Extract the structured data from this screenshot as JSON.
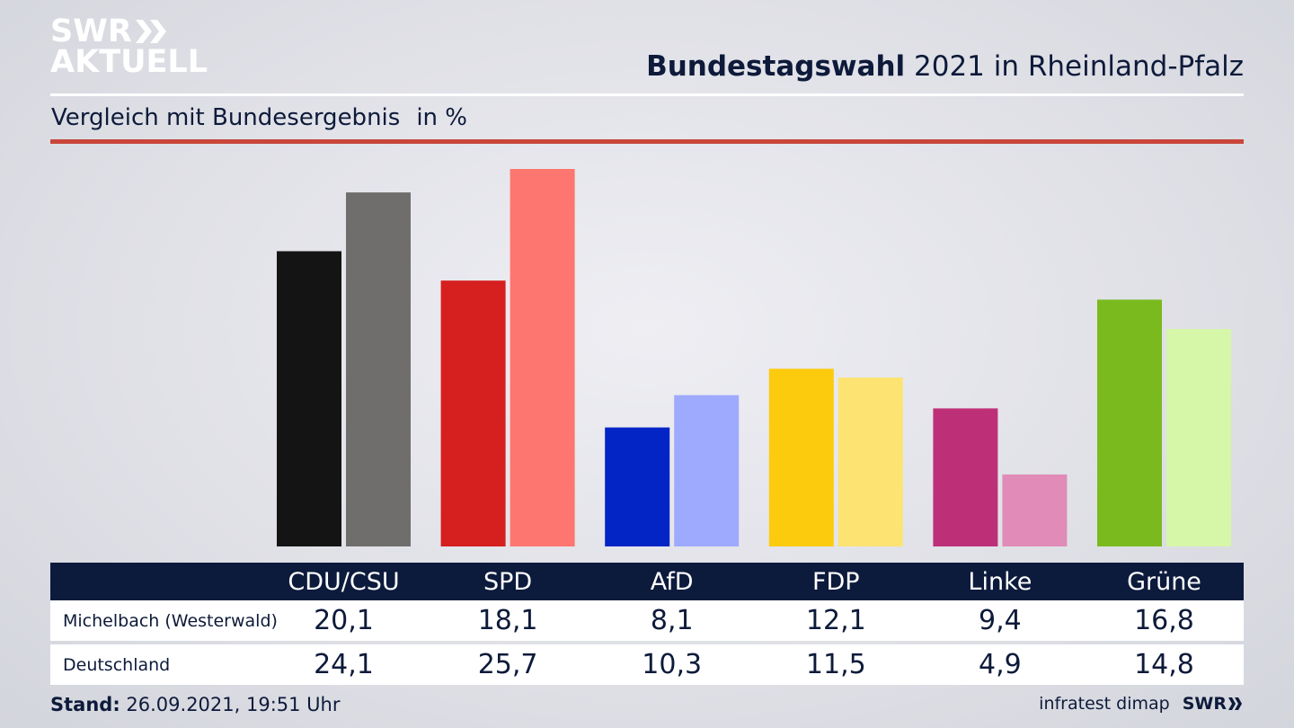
{
  "header": {
    "logo_line1": "SWR",
    "logo_line2": "AKTUELL",
    "title_bold": "Bundestagswahl",
    "title_rest": " 2021 in Rheinland-Pfalz",
    "subtitle": "Vergleich mit Bundesergebnis",
    "unit": "in %"
  },
  "colors": {
    "header_bg": "#0c1a3c",
    "rule_red": "#c9463b",
    "text": "#0d1a3a"
  },
  "chart_data": {
    "type": "bar",
    "title": "Bundestagswahl 2021 in Rheinland-Pfalz",
    "subtitle": "Vergleich mit Bundesergebnis",
    "ylabel": "in %",
    "categories": [
      "CDU/CSU",
      "SPD",
      "AfD",
      "FDP",
      "Linke",
      "Grüne"
    ],
    "series": [
      {
        "name": "Michelbach (Westerwald)",
        "values": [
          "20,1",
          "18,1",
          "8,1",
          "12,1",
          "9,4",
          "16,8"
        ],
        "colors": [
          "#141414",
          "#d61f1f",
          "#0325c5",
          "#fdcb0d",
          "#bd3078",
          "#7aba1f"
        ]
      },
      {
        "name": "Deutschland",
        "values": [
          "24,1",
          "25,7",
          "10,3",
          "11,5",
          "4,9",
          "14,8"
        ],
        "colors": [
          "#6f6e6c",
          "#fd766f",
          "#9eaafd",
          "#fde371",
          "#e08bb8",
          "#d6f6a8"
        ]
      }
    ],
    "ylim": [
      0,
      25.7
    ]
  },
  "footer": {
    "stand_label": "Stand:",
    "stand_value": " 26.09.2021, 19:51 Uhr",
    "source": "infratest dimap",
    "brand": "SWR"
  }
}
